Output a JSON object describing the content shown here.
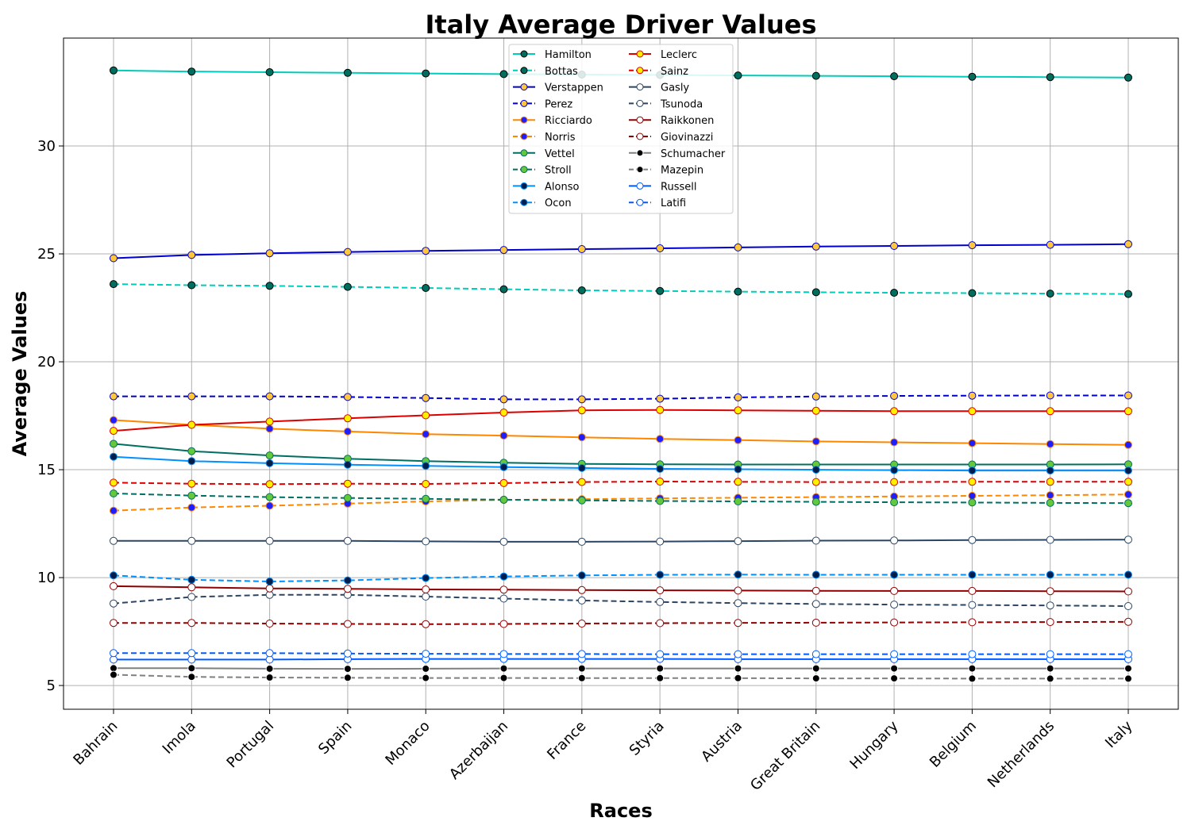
{
  "chart_data": {
    "type": "line",
    "title": "Italy Average Driver Values",
    "xlabel": "Races",
    "ylabel": "Average Values",
    "categories": [
      "Bahrain",
      "Imola",
      "Portugal",
      "Spain",
      "Monaco",
      "Azerbaijan",
      "France",
      "Styria",
      "Austria",
      "Great Britain",
      "Hungary",
      "Belgium",
      "Netherlands",
      "Italy"
    ],
    "ylim": [
      3.9,
      35.0
    ],
    "yticks": [
      5,
      10,
      15,
      20,
      25,
      30
    ],
    "grid": true,
    "legend_position": "top-center",
    "legend_columns": 2,
    "series": [
      {
        "name": "Hamilton",
        "color": "#00CCBB",
        "dash": "solid",
        "marker_face": "#006E5F",
        "marker_edge": "#000000",
        "values": [
          33.5,
          33.45,
          33.42,
          33.39,
          33.36,
          33.33,
          33.31,
          33.29,
          33.27,
          33.25,
          33.23,
          33.21,
          33.19,
          33.17
        ]
      },
      {
        "name": "Bottas",
        "color": "#00CCBB",
        "dash": "dashed",
        "marker_face": "#006E5F",
        "marker_edge": "#000000",
        "values": [
          23.6,
          23.55,
          23.52,
          23.47,
          23.42,
          23.36,
          23.31,
          23.28,
          23.25,
          23.22,
          23.2,
          23.18,
          23.16,
          23.14
        ]
      },
      {
        "name": "Verstappen",
        "color": "#0000CC",
        "dash": "solid",
        "marker_face": "#FFC83C",
        "marker_edge": "#0000CC",
        "values": [
          24.8,
          24.95,
          25.03,
          25.09,
          25.14,
          25.18,
          25.22,
          25.26,
          25.3,
          25.34,
          25.37,
          25.4,
          25.42,
          25.45
        ]
      },
      {
        "name": "Perez",
        "color": "#0000CC",
        "dash": "dashed",
        "marker_face": "#FFC83C",
        "marker_edge": "#0000CC",
        "values": [
          18.4,
          18.4,
          18.4,
          18.37,
          18.32,
          18.26,
          18.26,
          18.29,
          18.35,
          18.39,
          18.42,
          18.43,
          18.44,
          18.44
        ]
      },
      {
        "name": "Ricciardo",
        "color": "#FF8700",
        "dash": "solid",
        "marker_face": "#1E1EFF",
        "marker_edge": "#FF8700",
        "values": [
          17.3,
          17.08,
          16.9,
          16.77,
          16.65,
          16.58,
          16.5,
          16.43,
          16.37,
          16.31,
          16.27,
          16.23,
          16.19,
          16.15
        ]
      },
      {
        "name": "Norris",
        "color": "#FF8700",
        "dash": "dashed",
        "marker_face": "#1E1EFF",
        "marker_edge": "#FF8700",
        "values": [
          13.1,
          13.25,
          13.33,
          13.43,
          13.53,
          13.6,
          13.63,
          13.67,
          13.7,
          13.73,
          13.76,
          13.79,
          13.82,
          13.85
        ]
      },
      {
        "name": "Vettel",
        "color": "#006F62",
        "dash": "solid",
        "marker_face": "#64C83C",
        "marker_edge": "#006F62",
        "values": [
          16.2,
          15.86,
          15.66,
          15.51,
          15.4,
          15.32,
          15.27,
          15.25,
          15.24,
          15.24,
          15.24,
          15.24,
          15.24,
          15.25
        ]
      },
      {
        "name": "Stroll",
        "color": "#006F62",
        "dash": "dashed",
        "marker_face": "#64C83C",
        "marker_edge": "#006F62",
        "values": [
          13.9,
          13.8,
          13.73,
          13.69,
          13.65,
          13.61,
          13.58,
          13.55,
          13.53,
          13.51,
          13.49,
          13.48,
          13.46,
          13.45
        ]
      },
      {
        "name": "Alonso",
        "color": "#0090FF",
        "dash": "solid",
        "marker_face": "#001E4B",
        "marker_edge": "#0090FF",
        "values": [
          15.6,
          15.4,
          15.3,
          15.23,
          15.18,
          15.12,
          15.08,
          15.04,
          15.02,
          15.0,
          14.98,
          14.96,
          14.96,
          14.96
        ]
      },
      {
        "name": "Ocon",
        "color": "#0090FF",
        "dash": "dashed",
        "marker_face": "#001E4B",
        "marker_edge": "#0090FF",
        "values": [
          10.1,
          9.9,
          9.82,
          9.87,
          9.98,
          10.05,
          10.1,
          10.13,
          10.14,
          10.13,
          10.13,
          10.13,
          10.13,
          10.13
        ]
      },
      {
        "name": "Leclerc",
        "color": "#DC0000",
        "dash": "solid",
        "marker_face": "#FFF000",
        "marker_edge": "#DC0000",
        "values": [
          16.8,
          17.08,
          17.23,
          17.38,
          17.52,
          17.65,
          17.75,
          17.77,
          17.75,
          17.73,
          17.71,
          17.71,
          17.71,
          17.71
        ]
      },
      {
        "name": "Sainz",
        "color": "#DC0000",
        "dash": "dashed",
        "marker_face": "#FFF000",
        "marker_edge": "#DC0000",
        "values": [
          14.4,
          14.35,
          14.33,
          14.35,
          14.34,
          14.38,
          14.43,
          14.45,
          14.44,
          14.43,
          14.43,
          14.44,
          14.44,
          14.44
        ]
      },
      {
        "name": "Gasly",
        "color": "#2B4562",
        "dash": "solid",
        "marker_face": "#FFFFFF",
        "marker_edge": "#2B4562",
        "values": [
          11.7,
          11.7,
          11.7,
          11.7,
          11.68,
          11.66,
          11.66,
          11.67,
          11.69,
          11.71,
          11.72,
          11.74,
          11.75,
          11.76
        ]
      },
      {
        "name": "Tsunoda",
        "color": "#2B4562",
        "dash": "dashed",
        "marker_face": "#FFFFFF",
        "marker_edge": "#2B4562",
        "values": [
          8.8,
          9.1,
          9.2,
          9.2,
          9.12,
          9.03,
          8.94,
          8.87,
          8.82,
          8.78,
          8.75,
          8.73,
          8.71,
          8.68
        ]
      },
      {
        "name": "Raikkonen",
        "color": "#900000",
        "dash": "solid",
        "marker_face": "#FFFFFF",
        "marker_edge": "#900000",
        "values": [
          9.6,
          9.55,
          9.5,
          9.48,
          9.45,
          9.44,
          9.42,
          9.41,
          9.4,
          9.39,
          9.38,
          9.38,
          9.37,
          9.36
        ]
      },
      {
        "name": "Giovinazzi",
        "color": "#900000",
        "dash": "dashed",
        "marker_face": "#FFFFFF",
        "marker_edge": "#900000",
        "values": [
          7.9,
          7.9,
          7.87,
          7.85,
          7.84,
          7.85,
          7.87,
          7.89,
          7.9,
          7.91,
          7.92,
          7.93,
          7.94,
          7.95
        ]
      },
      {
        "name": "Schumacher",
        "color": "#808080",
        "dash": "solid",
        "marker_face": "#000000",
        "marker_edge": "#FFFFFF",
        "values": [
          5.8,
          5.8,
          5.78,
          5.77,
          5.78,
          5.79,
          5.79,
          5.79,
          5.79,
          5.79,
          5.79,
          5.79,
          5.79,
          5.79
        ]
      },
      {
        "name": "Mazepin",
        "color": "#808080",
        "dash": "dashed",
        "marker_face": "#000000",
        "marker_edge": "#FFFFFF",
        "values": [
          5.5,
          5.4,
          5.37,
          5.36,
          5.35,
          5.35,
          5.34,
          5.34,
          5.34,
          5.33,
          5.33,
          5.32,
          5.32,
          5.32
        ]
      },
      {
        "name": "Russell",
        "color": "#005AFF",
        "dash": "solid",
        "marker_face": "#FFFFFF",
        "marker_edge": "#005AFF",
        "values": [
          6.2,
          6.2,
          6.2,
          6.22,
          6.23,
          6.23,
          6.23,
          6.23,
          6.22,
          6.22,
          6.22,
          6.22,
          6.22,
          6.22
        ]
      },
      {
        "name": "Latifi",
        "color": "#005AFF",
        "dash": "dashed",
        "marker_face": "#FFFFFF",
        "marker_edge": "#005AFF",
        "values": [
          6.5,
          6.5,
          6.5,
          6.48,
          6.47,
          6.46,
          6.46,
          6.45,
          6.45,
          6.45,
          6.45,
          6.45,
          6.45,
          6.45
        ]
      }
    ]
  }
}
